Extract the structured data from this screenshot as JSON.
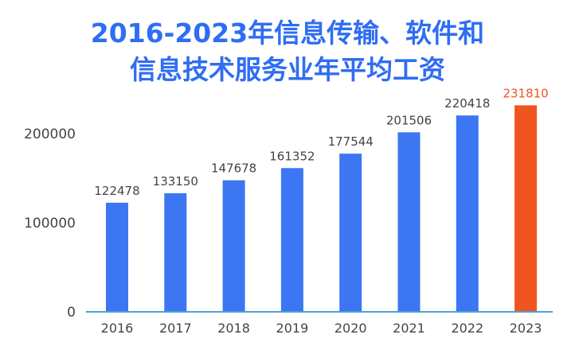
{
  "chart_data": {
    "type": "bar",
    "title_lines": [
      "2016-2023年信息传输、软件和",
      "信息技术服务业年平均工资"
    ],
    "categories": [
      "2016",
      "2017",
      "2018",
      "2019",
      "2020",
      "2021",
      "2022",
      "2023"
    ],
    "values": [
      122478,
      133150,
      147678,
      161352,
      177544,
      201506,
      220418,
      231810
    ],
    "data_labels": [
      "122478",
      "133150",
      "147678",
      "161352",
      "177544",
      "201506",
      "220418",
      "231810"
    ],
    "y_ticks": [
      0,
      100000,
      200000
    ],
    "y_tick_labels": [
      "0",
      "100000",
      "200000"
    ],
    "ylim": [
      0,
      240000
    ],
    "xlabel": "",
    "ylabel": "",
    "grid": false,
    "legend": "none",
    "colors": {
      "bar": "#3d76f2",
      "highlight_bar": "#f0541f",
      "highlight_label": "#f0541f",
      "title": "#2f6df3",
      "axis": "#4aa3d4",
      "label": "#444444"
    },
    "highlight_category": "2023"
  }
}
